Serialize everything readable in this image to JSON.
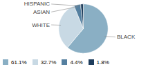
{
  "chart_data": {
    "type": "pie",
    "categories": [
      "BLACK",
      "WHITE",
      "ASIAN",
      "HISPANIC"
    ],
    "values": [
      61.1,
      32.7,
      4.4,
      1.8
    ],
    "value_labels": [
      "61.1%",
      "32.7%",
      "4.4%",
      "1.8%"
    ],
    "colors": [
      "#8aafc4",
      "#c8d9e4",
      "#5580a0",
      "#1e3d5c"
    ],
    "legend": "lower left"
  }
}
